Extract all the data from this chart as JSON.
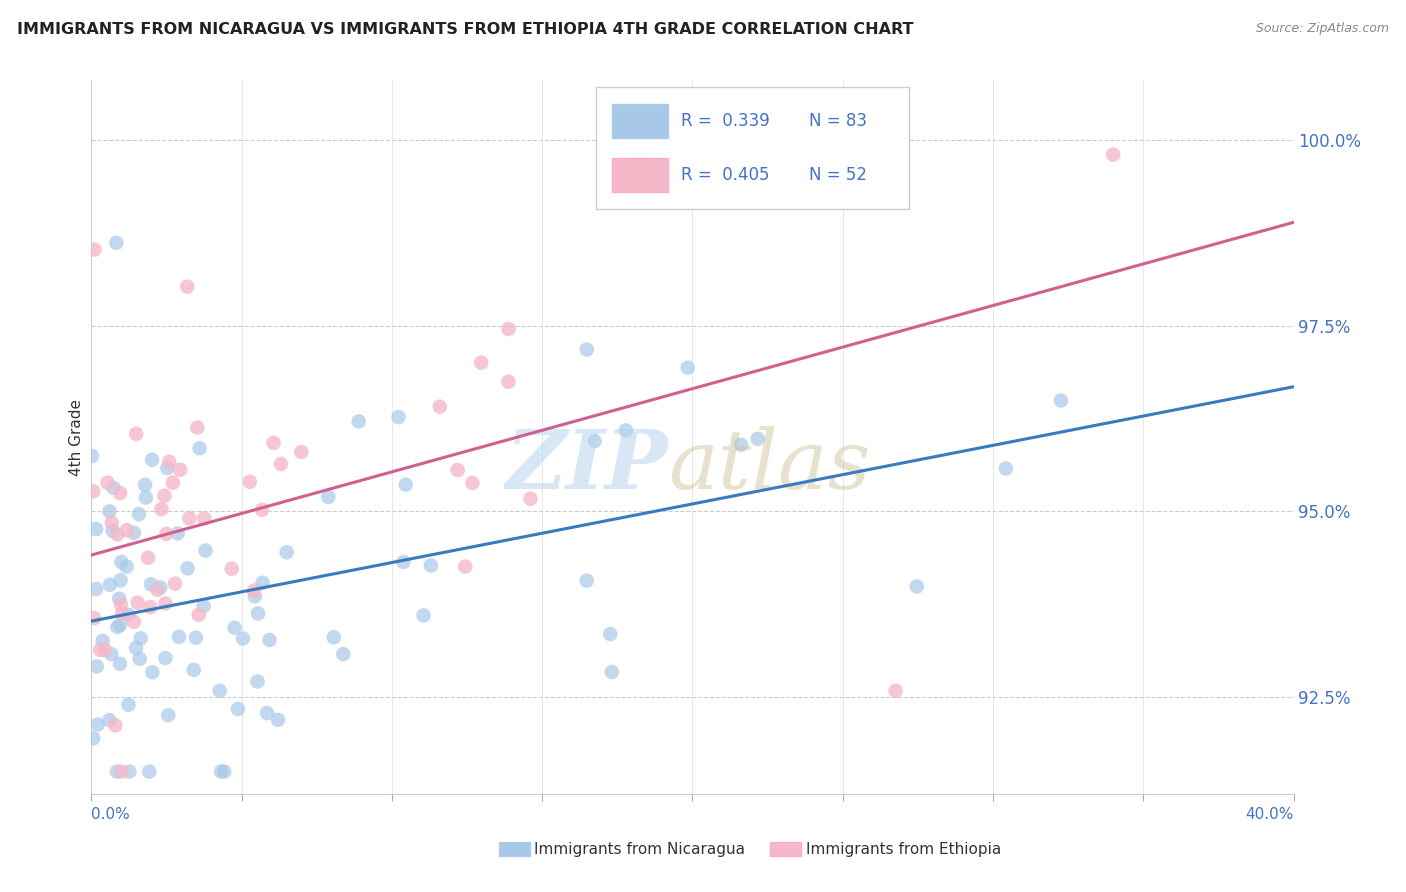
{
  "title": "IMMIGRANTS FROM NICARAGUA VS IMMIGRANTS FROM ETHIOPIA 4TH GRADE CORRELATION CHART",
  "source": "Source: ZipAtlas.com",
  "ylabel": "4th Grade",
  "ylabel_right_values": [
    92.5,
    95.0,
    97.5,
    100.0
  ],
  "xmin": 0.0,
  "xmax": 40.0,
  "ymin": 91.2,
  "ymax": 100.8,
  "R_nicaragua": 0.339,
  "N_nicaragua": 83,
  "R_ethiopia": 0.405,
  "N_ethiopia": 52,
  "blue_color": "#a8c8e8",
  "pink_color": "#f4b8c8",
  "line_blue": "#3a7abf",
  "line_pink": "#d06090"
}
